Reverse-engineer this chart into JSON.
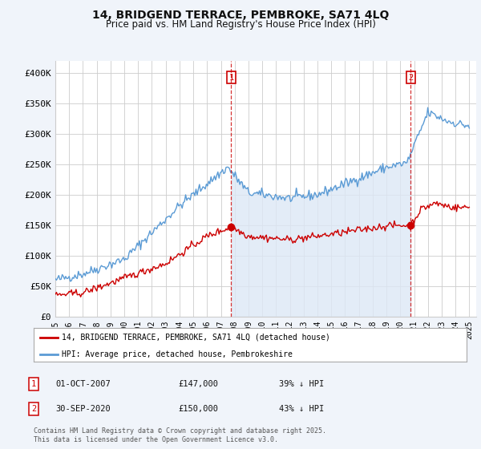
{
  "title": "14, BRIDGEND TERRACE, PEMBROKE, SA71 4LQ",
  "subtitle": "Price paid vs. HM Land Registry's House Price Index (HPI)",
  "bg_color": "#f0f4fa",
  "plot_bg_color": "#ffffff",
  "grid_color": "#cccccc",
  "hpi_color": "#5b9bd5",
  "fill_color": "#dde8f5",
  "property_color": "#cc0000",
  "vline_color": "#cc0000",
  "ylim": [
    0,
    420000
  ],
  "yticks": [
    0,
    50000,
    100000,
    150000,
    200000,
    250000,
    300000,
    350000,
    400000
  ],
  "ytick_labels": [
    "£0",
    "£50K",
    "£100K",
    "£150K",
    "£200K",
    "£250K",
    "£300K",
    "£350K",
    "£400K"
  ],
  "sale1_date": 2007.75,
  "sale1_price": 147000,
  "sale1_label": "1",
  "sale2_date": 2020.75,
  "sale2_price": 150000,
  "sale2_label": "2",
  "legend_property": "14, BRIDGEND TERRACE, PEMBROKE, SA71 4LQ (detached house)",
  "legend_hpi": "HPI: Average price, detached house, Pembrokeshire",
  "footer": "Contains HM Land Registry data © Crown copyright and database right 2025.\nThis data is licensed under the Open Government Licence v3.0.",
  "xtick_years": [
    1995,
    1996,
    1997,
    1998,
    1999,
    2000,
    2001,
    2002,
    2003,
    2004,
    2005,
    2006,
    2007,
    2008,
    2009,
    2010,
    2011,
    2012,
    2013,
    2014,
    2015,
    2016,
    2017,
    2018,
    2019,
    2020,
    2021,
    2022,
    2023,
    2024,
    2025
  ]
}
